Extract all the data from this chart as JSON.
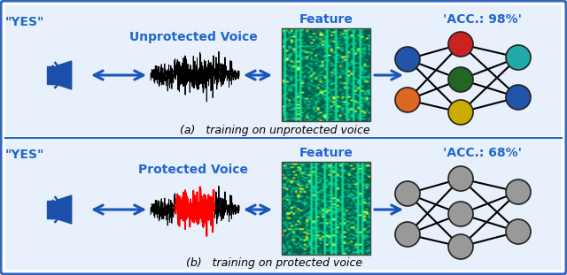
{
  "fig_width": 6.4,
  "fig_height": 3.11,
  "dpi": 100,
  "bg_color": "#ffffff",
  "border_color": "#3366bb",
  "panel_bg": "#e8f0fb",
  "blue_text": "#2266cc",
  "arrow_color": "#1a55bb",
  "title_a": "(a)   training on unprotected voice",
  "title_b": "(b)   training on protected voice",
  "yes_label": "\"YES\"",
  "feature_label": "Feature",
  "acc_a": "'ACC.: 98%'",
  "acc_b": "'ACC.: 68%'",
  "label_a": "Unprotected Voice",
  "label_b": "Protected Voice",
  "node_colors_a": [
    "#2255aa",
    "#dd6622",
    "#cc2222",
    "#226622",
    "#ccaa00",
    "#22aaaa"
  ],
  "node_colors_b": [
    "#999999",
    "#999999",
    "#999999",
    "#999999",
    "#999999",
    "#999999"
  ],
  "node_edge": "#222222"
}
